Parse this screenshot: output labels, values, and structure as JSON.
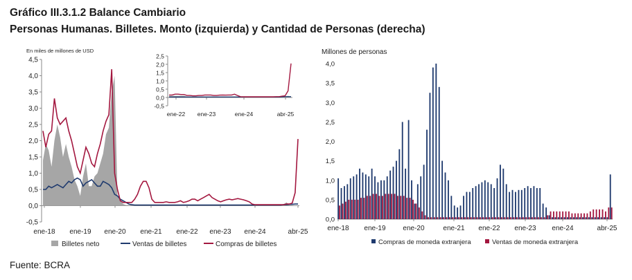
{
  "header": {
    "title": "Gráfico III.3.1.2 Balance Cambiario",
    "subtitle": "Personas Humanas. Billetes. Monto (izquierda) y Cantidad de Personas (derecha)"
  },
  "footer": {
    "source": "Fuente: BCRA"
  },
  "colors": {
    "gray_area": "#a6a6a6",
    "navy": "#1f3a6e",
    "maroon": "#a3173f",
    "axis": "#8a8a8a"
  },
  "chart_data": [
    {
      "id": "left",
      "type": "line",
      "ylabel": "En miles de millones de USD",
      "ylim": [
        -0.5,
        4.5
      ],
      "yticks": [
        "-0,5",
        "0,0",
        "0,5",
        "1,0",
        "1,5",
        "2,0",
        "2,5",
        "3,0",
        "3,5",
        "4,0",
        "4,5"
      ],
      "xticks": [
        "ene-18",
        "ene-19",
        "ene-20",
        "ene-21",
        "ene-22",
        "ene-23",
        "ene-24",
        "abr-25"
      ],
      "legend": [
        "Billetes neto",
        "Ventas de billetes",
        "Compras de billetes"
      ],
      "x_start": "ene-18",
      "series": [
        {
          "name": "Billetes neto",
          "type": "area",
          "values": [
            1.4,
            1.9,
            1.7,
            1.2,
            2.0,
            2.5,
            2.1,
            1.5,
            1.9,
            1.5,
            1.2,
            0.8,
            0.6,
            0.3,
            0.9,
            1.3,
            0.6,
            0.6,
            0.9,
            1.0,
            1.3,
            1.6,
            2.2,
            2.4,
            3.5,
            4.0,
            0.3,
            0.2,
            0.05,
            0.02,
            0.02,
            0.02,
            0.02,
            0.02,
            0.02,
            0.02,
            0.02,
            0.02,
            0.02,
            0.02,
            0.02,
            0.02,
            0.02,
            0.02,
            0.02,
            0.02,
            0.02,
            0.02,
            0.02,
            0.02,
            0.02,
            0.02,
            0.02,
            0.02,
            0.02,
            0.02,
            0.02,
            0.02,
            0.02,
            0.02,
            0.02,
            0.02,
            0.02,
            0.02,
            0.02,
            0.02,
            0.02,
            0.02,
            0.02,
            0.02,
            0.02,
            0.02,
            0.02,
            0.02,
            0.02,
            0.02,
            0.02,
            0.02,
            0.02,
            0.02,
            0.02,
            0.02,
            0.02,
            0.02,
            0.05,
            0.1,
            0.02,
            0.01,
            0.01,
            0.01
          ]
        },
        {
          "name": "Ventas de billetes",
          "values": [
            0.5,
            0.5,
            0.6,
            0.55,
            0.6,
            0.65,
            0.6,
            0.55,
            0.65,
            0.75,
            0.7,
            0.8,
            0.85,
            0.8,
            0.6,
            0.7,
            0.75,
            0.8,
            0.7,
            0.6,
            0.6,
            0.75,
            0.7,
            0.65,
            0.55,
            0.35,
            0.3,
            0.2,
            0.15,
            0.1,
            0.05,
            0.03,
            0.02,
            0.02,
            0.02,
            0.02,
            0.02,
            0.02,
            0.02,
            0.02,
            0.02,
            0.02,
            0.02,
            0.02,
            0.02,
            0.02,
            0.02,
            0.02,
            0.02,
            0.02,
            0.02,
            0.02,
            0.02,
            0.02,
            0.02,
            0.02,
            0.02,
            0.02,
            0.02,
            0.02,
            0.02,
            0.02,
            0.02,
            0.02,
            0.02,
            0.02,
            0.02,
            0.02,
            0.02,
            0.02,
            0.02,
            0.02,
            0.02,
            0.02,
            0.02,
            0.02,
            0.02,
            0.02,
            0.02,
            0.02,
            0.02,
            0.02,
            0.02,
            0.02,
            0.03,
            0.03,
            0.04,
            0.04,
            0.05,
            0.05
          ]
        },
        {
          "name": "Compras de billetes",
          "values": [
            2.3,
            1.8,
            2.2,
            2.3,
            3.3,
            2.7,
            2.5,
            2.6,
            2.7,
            2.3,
            2.0,
            1.6,
            1.2,
            1.0,
            1.4,
            1.8,
            1.6,
            1.3,
            1.2,
            1.6,
            1.9,
            2.3,
            2.6,
            2.8,
            4.2,
            1.0,
            0.5,
            0.15,
            0.1,
            0.1,
            0.1,
            0.1,
            0.2,
            0.35,
            0.6,
            0.75,
            0.75,
            0.55,
            0.2,
            0.1,
            0.1,
            0.1,
            0.1,
            0.12,
            0.1,
            0.1,
            0.1,
            0.12,
            0.15,
            0.1,
            0.12,
            0.15,
            0.2,
            0.2,
            0.15,
            0.2,
            0.25,
            0.3,
            0.35,
            0.25,
            0.2,
            0.15,
            0.12,
            0.15,
            0.18,
            0.2,
            0.18,
            0.2,
            0.22,
            0.2,
            0.18,
            0.15,
            0.12,
            0.05,
            0.03,
            0.03,
            0.03,
            0.03,
            0.03,
            0.03,
            0.03,
            0.03,
            0.03,
            0.03,
            0.03,
            0.05,
            0.05,
            0.08,
            0.4,
            2.05
          ]
        }
      ]
    },
    {
      "id": "inset",
      "type": "line",
      "ylim": [
        -0.5,
        2.5
      ],
      "yticks": [
        "-0,5",
        "0,0",
        "0,5",
        "1,0",
        "1,5",
        "2,0",
        "2,5"
      ],
      "xticks": [
        "ene-22",
        "ene-23",
        "ene-24",
        "abr-25"
      ],
      "series": [
        {
          "name": "Billetes neto",
          "type": "area",
          "values": [
            0.1,
            0.1,
            0.1,
            0.1,
            0.1,
            0.1,
            0.05,
            0.05,
            0.05,
            0.05,
            0.05,
            0.05,
            0.05,
            0.05,
            0.05,
            0.05,
            0.05,
            0.05,
            0.05,
            0.05,
            0.05,
            0.05,
            0.05,
            0.05,
            0.05,
            0.05,
            0.03,
            0.03,
            0.03,
            0.03,
            0.03,
            0.03,
            0.03,
            0.03,
            0.03,
            0.03,
            0.03,
            0.03,
            0.03,
            0.05,
            0.1,
            0.02
          ]
        },
        {
          "name": "Ventas de billetes",
          "values": [
            0.03,
            0.03,
            0.03,
            0.03,
            0.03,
            0.03,
            0.03,
            0.03,
            0.03,
            0.03,
            0.03,
            0.03,
            0.03,
            0.03,
            0.03,
            0.03,
            0.03,
            0.03,
            0.03,
            0.03,
            0.03,
            0.03,
            0.03,
            0.03,
            0.03,
            0.03,
            0.03,
            0.03,
            0.03,
            0.03,
            0.03,
            0.03,
            0.03,
            0.03,
            0.03,
            0.03,
            0.03,
            0.03,
            0.04,
            0.05,
            0.05,
            0.05
          ]
        },
        {
          "name": "Compras de billetes",
          "values": [
            0.15,
            0.15,
            0.2,
            0.2,
            0.18,
            0.18,
            0.12,
            0.12,
            0.1,
            0.1,
            0.12,
            0.12,
            0.15,
            0.15,
            0.15,
            0.12,
            0.12,
            0.14,
            0.15,
            0.14,
            0.15,
            0.15,
            0.2,
            0.12,
            0.05,
            0.04,
            0.04,
            0.04,
            0.04,
            0.04,
            0.04,
            0.04,
            0.04,
            0.04,
            0.04,
            0.04,
            0.05,
            0.05,
            0.08,
            0.1,
            0.4,
            2.05
          ]
        }
      ]
    },
    {
      "id": "right",
      "type": "bar",
      "ylabel": "Millones de personas",
      "ylim": [
        0,
        4.0
      ],
      "yticks": [
        "0,0",
        "0,5",
        "1,0",
        "1,5",
        "2,0",
        "2,5",
        "3,0",
        "3,5",
        "4,0"
      ],
      "xticks": [
        "ene-18",
        "ene-19",
        "ene-20",
        "ene-21",
        "ene-22",
        "ene-23",
        "ene-24",
        "abr-25"
      ],
      "legend": [
        "Compras de moneda extranjera",
        "Ventas de moneda extranjera"
      ],
      "series": [
        {
          "name": "Compras de moneda extranjera",
          "values": [
            1.05,
            0.8,
            0.85,
            0.9,
            1.05,
            1.1,
            1.15,
            1.3,
            1.2,
            1.15,
            1.1,
            1.3,
            1.1,
            0.95,
            1.0,
            1.0,
            1.1,
            1.25,
            1.35,
            1.5,
            1.8,
            2.5,
            1.3,
            2.55,
            1.0,
            0.4,
            0.9,
            1.1,
            1.4,
            2.3,
            3.25,
            3.9,
            4.0,
            3.4,
            1.5,
            1.2,
            1.0,
            0.6,
            0.35,
            0.3,
            0.35,
            0.6,
            0.7,
            0.7,
            0.8,
            0.85,
            0.9,
            0.95,
            1.0,
            0.95,
            0.9,
            0.8,
            1.05,
            1.4,
            1.3,
            0.9,
            0.7,
            0.75,
            0.7,
            0.75,
            0.75,
            0.8,
            0.85,
            0.8,
            0.85,
            0.8,
            0.8,
            0.4,
            0.3,
            0.1,
            0.05,
            0.05,
            0.05,
            0.05,
            0.05,
            0.05,
            0.05,
            0.05,
            0.05,
            0.05,
            0.05,
            0.05,
            0.05,
            0.05,
            0.05,
            0.05,
            0.05,
            0.05,
            0.05,
            1.15
          ]
        },
        {
          "name": "Ventas de moneda extranjera",
          "values": [
            0.35,
            0.4,
            0.45,
            0.5,
            0.5,
            0.5,
            0.5,
            0.55,
            0.55,
            0.6,
            0.6,
            0.65,
            0.65,
            0.6,
            0.6,
            0.65,
            0.65,
            0.65,
            0.65,
            0.6,
            0.6,
            0.6,
            0.55,
            0.55,
            0.5,
            0.4,
            0.3,
            0.2,
            0.1,
            0.05,
            0.05,
            0.05,
            0.05,
            0.05,
            0.05,
            0.05,
            0.05,
            0.05,
            0.05,
            0.05,
            0.05,
            0.05,
            0.05,
            0.05,
            0.05,
            0.05,
            0.05,
            0.05,
            0.05,
            0.05,
            0.05,
            0.05,
            0.05,
            0.05,
            0.05,
            0.05,
            0.05,
            0.05,
            0.05,
            0.05,
            0.05,
            0.05,
            0.05,
            0.05,
            0.05,
            0.05,
            0.05,
            0.05,
            0.1,
            0.2,
            0.2,
            0.2,
            0.2,
            0.2,
            0.2,
            0.2,
            0.15,
            0.15,
            0.15,
            0.15,
            0.15,
            0.15,
            0.2,
            0.25,
            0.25,
            0.25,
            0.25,
            0.2,
            0.3,
            0.3
          ]
        }
      ]
    }
  ]
}
